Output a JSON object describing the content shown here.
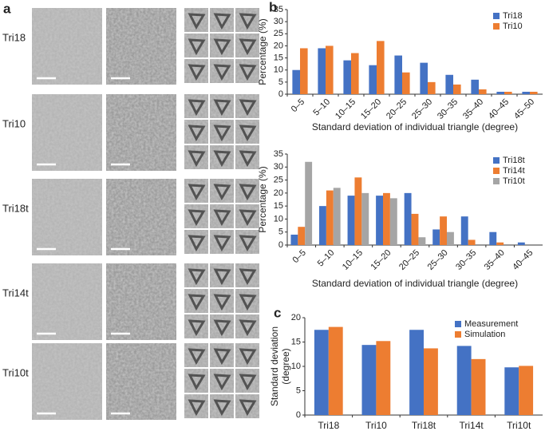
{
  "panel_labels": [
    "a",
    "b",
    "c"
  ],
  "sample_labels": [
    "Tri18",
    "Tri10",
    "Tri18t",
    "Tri14t",
    "Tri10t"
  ],
  "chart_data": [
    {
      "type": "bar",
      "categories": [
        "0–5",
        "5–10",
        "10–15",
        "15–20",
        "20–25",
        "25–30",
        "30–35",
        "35–40",
        "40–45",
        "45–50"
      ],
      "series": [
        {
          "name": "Tri18",
          "color": "#4472c4",
          "values": [
            10,
            19,
            14,
            12,
            16,
            13,
            8,
            6,
            1,
            1
          ]
        },
        {
          "name": "Tri10",
          "color": "#ed7d31",
          "values": [
            19,
            20,
            17,
            22,
            9,
            5,
            4,
            2,
            1,
            1
          ]
        }
      ],
      "ylabel": [
        "Percentage (%)"
      ],
      "xlabel": "Standard deviation of individual triangle (degree)",
      "ylim": [
        0,
        35
      ],
      "yticks": [
        0,
        5,
        10,
        15,
        20,
        25,
        30,
        35
      ],
      "legend": "top-right"
    },
    {
      "type": "bar",
      "categories": [
        "0–5",
        "5–10",
        "10–15",
        "15–20",
        "20–25",
        "25–30",
        "30–35",
        "35–40",
        "40–45"
      ],
      "series": [
        {
          "name": "Tri18t",
          "color": "#4472c4",
          "values": [
            4,
            15,
            19,
            19,
            20,
            6,
            11,
            5,
            1
          ]
        },
        {
          "name": "Tri14t",
          "color": "#ed7d31",
          "values": [
            7,
            21,
            26,
            20,
            12,
            11,
            2,
            1,
            0
          ]
        },
        {
          "name": "Tri10t",
          "color": "#a5a5a5",
          "values": [
            32,
            22,
            20,
            18,
            3,
            5,
            0,
            0,
            0
          ]
        }
      ],
      "ylabel": [
        "Percentage (%)"
      ],
      "xlabel": "Standard deviation of individual triangle (degree)",
      "ylim": [
        0,
        35
      ],
      "yticks": [
        0,
        5,
        10,
        15,
        20,
        25,
        30,
        35
      ],
      "legend": "top-right"
    },
    {
      "type": "bar",
      "categories": [
        "Tri18",
        "Tri10",
        "Tri18t",
        "Tri14t",
        "Tri10t"
      ],
      "series": [
        {
          "name": "Measurement",
          "color": "#4472c4",
          "values": [
            17.5,
            14.4,
            17.5,
            14.2,
            9.8
          ]
        },
        {
          "name": "Simulation",
          "color": "#ed7d31",
          "values": [
            18.1,
            15.2,
            13.7,
            11.5,
            10.1
          ]
        }
      ],
      "ylabel": [
        "Standard deviation",
        "(degree)"
      ],
      "ylim": [
        0,
        20
      ],
      "yticks": [
        0,
        5,
        10,
        15,
        20
      ],
      "legend": "top-right"
    }
  ]
}
